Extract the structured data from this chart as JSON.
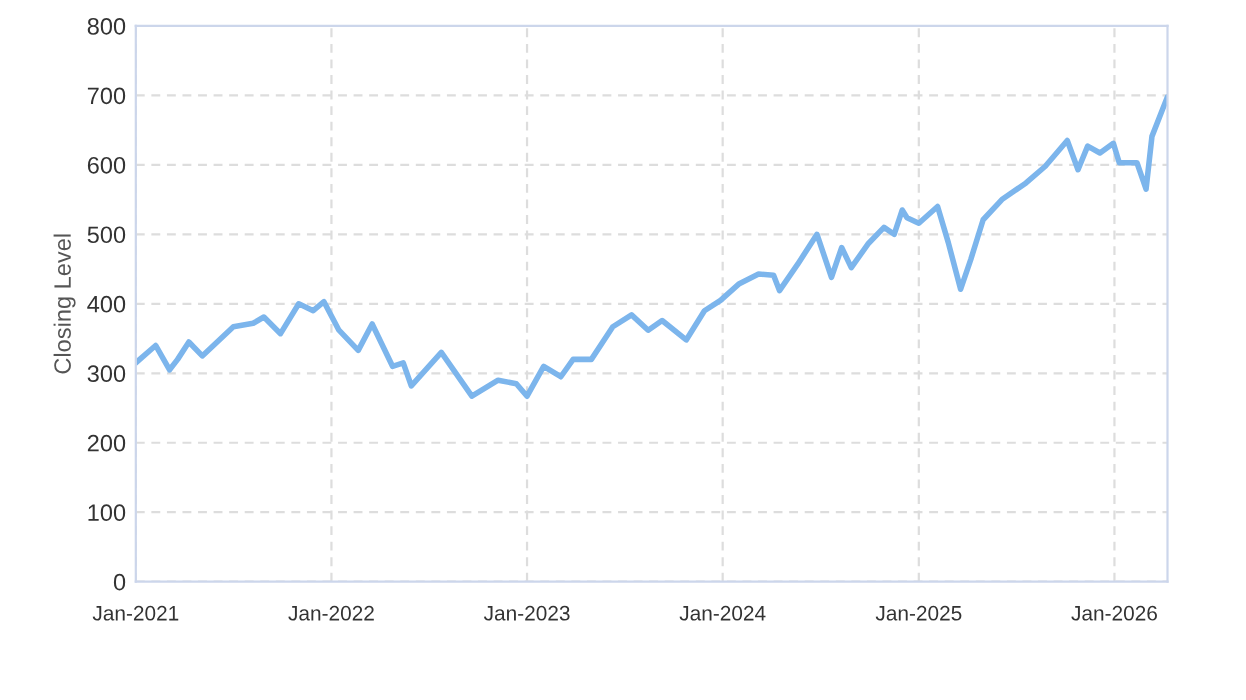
{
  "chart_data": {
    "type": "line",
    "ylabel": "Closing Level",
    "x": [
      "2021-01-01",
      "2021-02-07",
      "2021-03-05",
      "2021-03-20",
      "2021-04-10",
      "2021-05-05",
      "2021-07-02",
      "2021-08-08",
      "2021-08-28",
      "2021-09-28",
      "2021-11-01",
      "2021-11-28",
      "2021-12-18",
      "2022-01-15",
      "2022-02-20",
      "2022-03-18",
      "2022-04-25",
      "2022-05-15",
      "2022-05-30",
      "2022-07-25",
      "2022-09-20",
      "2022-11-08",
      "2022-12-12",
      "2023-01-01",
      "2023-02-01",
      "2023-03-05",
      "2023-03-28",
      "2023-05-01",
      "2023-06-10",
      "2023-07-15",
      "2023-08-15",
      "2023-09-10",
      "2023-10-25",
      "2023-11-28",
      "2023-12-28",
      "2024-02-01",
      "2024-03-08",
      "2024-04-05",
      "2024-04-16",
      "2024-05-20",
      "2024-06-25",
      "2024-07-22",
      "2024-08-10",
      "2024-08-28",
      "2024-09-28",
      "2024-10-28",
      "2024-11-16",
      "2024-12-01",
      "2024-12-10",
      "2025-01-01",
      "2025-02-05",
      "2025-02-25",
      "2025-03-20",
      "2025-04-08",
      "2025-05-01",
      "2025-06-05",
      "2025-07-20",
      "2025-08-25",
      "2025-10-05",
      "2025-10-25",
      "2025-11-12",
      "2025-12-05",
      "2025-12-30",
      "2026-01-10",
      "2026-02-12",
      "2026-03-01",
      "2026-03-12",
      "2026-04-10"
    ],
    "series": [
      {
        "color": "#7cb5ec",
        "values": [
          315,
          340,
          305,
          320,
          345,
          325,
          367,
          372,
          381,
          357,
          400,
          390,
          403,
          362,
          333,
          371,
          310,
          315,
          282,
          330,
          267,
          290,
          285,
          267,
          310,
          295,
          320,
          320,
          367,
          384,
          362,
          376,
          348,
          390,
          405,
          429,
          443,
          441,
          419,
          457,
          500,
          438,
          481,
          452,
          486,
          510,
          500,
          535,
          524,
          516,
          540,
          488,
          421,
          464,
          521,
          550,
          574,
          598,
          635,
          593,
          627,
          617,
          631,
          603,
          603,
          565,
          641,
          698
        ]
      }
    ],
    "xlim": [
      "2021-01-01",
      "2026-04-10"
    ],
    "xticks": [
      {
        "value": "2021-01-01",
        "label": "Jan-2021"
      },
      {
        "value": "2022-01-01",
        "label": "Jan-2022"
      },
      {
        "value": "2023-01-01",
        "label": "Jan-2023"
      },
      {
        "value": "2024-01-01",
        "label": "Jan-2024"
      },
      {
        "value": "2025-01-01",
        "label": "Jan-2025"
      },
      {
        "value": "2026-01-01",
        "label": "Jan-2026"
      }
    ],
    "ylim": [
      0,
      800
    ],
    "yticks": [
      0,
      100,
      200,
      300,
      400,
      500,
      600,
      700,
      800
    ],
    "grid": true,
    "legend": false,
    "line_style": "solid",
    "marker": "none"
  }
}
